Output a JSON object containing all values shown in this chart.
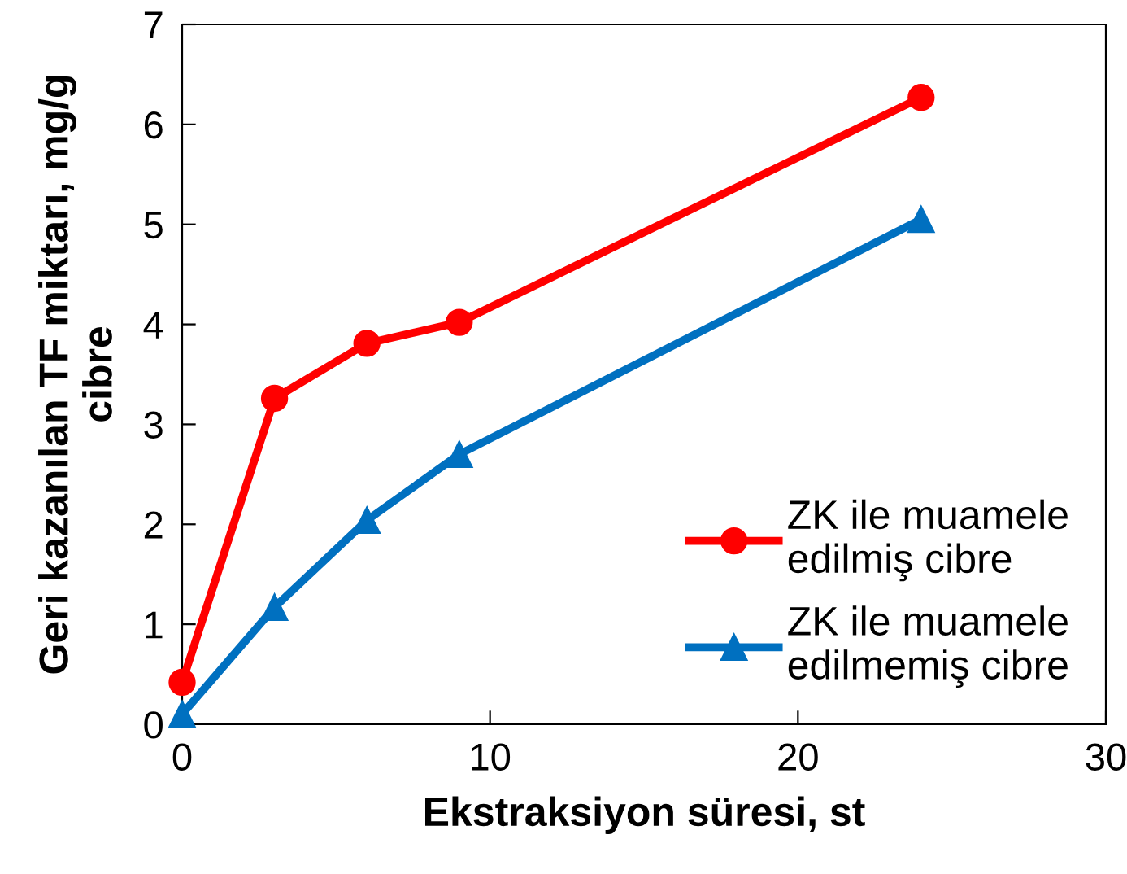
{
  "chart_data": {
    "type": "line",
    "xlabel": "Ekstraksiyon süresi, st",
    "ylabel": "Geri kazanılan TF miktarı, mg/g\ncibre",
    "x": [
      0,
      3,
      6,
      9,
      24
    ],
    "series": [
      {
        "name": "ZK ile muamele\nedilmiş cibre",
        "color": "#ff0000",
        "marker": "circle",
        "values": [
          0.42,
          3.26,
          3.81,
          4.02,
          6.27
        ]
      },
      {
        "name": "ZK ile muamele\nedilmemiş cibre",
        "color": "#0070c0",
        "marker": "triangle",
        "values": [
          0.1,
          1.17,
          2.04,
          2.7,
          5.05
        ]
      }
    ],
    "xlim": [
      0,
      30
    ],
    "xticks": [
      0,
      10,
      20,
      30
    ],
    "ylim": [
      0,
      7
    ],
    "yticks": [
      0,
      1,
      2,
      3,
      4,
      5,
      6,
      7
    ],
    "grid": false,
    "legend": "bottom right",
    "line_style": "solid"
  }
}
